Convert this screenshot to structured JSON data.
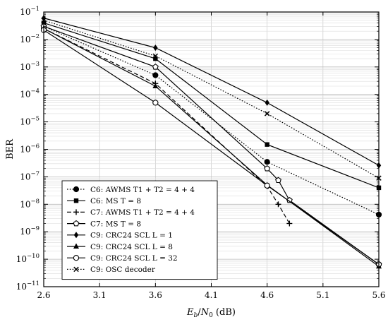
{
  "chart_data": {
    "type": "line",
    "xlabel": "E_b/N_0 (dB)",
    "ylabel": "BER",
    "xlim": [
      2.6,
      5.6
    ],
    "ylim_log10": [
      -11,
      -1
    ],
    "y_scale": "log",
    "grid": "major and minor",
    "legend_position": "bottom-left",
    "x_ticks": [
      "2.6",
      "3.1",
      "3.6",
      "4.1",
      "4.6",
      "5.1",
      "5.6"
    ],
    "y_ticks": [
      "10^-1",
      "10^-2",
      "10^-3",
      "10^-4",
      "10^-5",
      "10^-6",
      "10^-7",
      "10^-8",
      "10^-9",
      "10^-10",
      "10^-11"
    ],
    "series": [
      {
        "name": "C6: AWMS T1 + T2 = 4 + 4",
        "dash": "dotted",
        "marker": "filled-circle",
        "points": [
          [
            2.6,
            0.03
          ],
          [
            3.6,
            0.0005
          ],
          [
            4.6,
            3.5e-07
          ],
          [
            5.6,
            4.2e-09
          ]
        ]
      },
      {
        "name": "C6: MS T = 8",
        "dash": "solid",
        "marker": "filled-square",
        "points": [
          [
            2.6,
            0.04
          ],
          [
            3.6,
            0.002
          ],
          [
            4.6,
            1.5e-06
          ],
          [
            5.6,
            4e-08
          ]
        ]
      },
      {
        "name": "C7: AWMS T1 + T2 = 4 + 4",
        "dash": "dashed",
        "marker": "plus",
        "points": [
          [
            2.6,
            0.025
          ],
          [
            3.6,
            0.00025
          ],
          [
            4.6,
            4.5e-08
          ],
          [
            4.7,
            1e-08
          ],
          [
            4.8,
            2e-09
          ]
        ]
      },
      {
        "name": "C7: MS T = 8",
        "dash": "solid",
        "marker": "open-pentagon",
        "points": [
          [
            2.6,
            0.03
          ],
          [
            3.6,
            0.001
          ],
          [
            4.6,
            2e-07
          ],
          [
            4.7,
            7.5e-08
          ],
          [
            4.8,
            1.4e-08
          ],
          [
            5.6,
            6.5e-11
          ]
        ]
      },
      {
        "name": "C9: CRC24 SCL L = 1",
        "dash": "solid",
        "marker": "filled-diamond",
        "points": [
          [
            2.6,
            0.06
          ],
          [
            3.6,
            0.005
          ],
          [
            4.6,
            5e-05
          ],
          [
            5.6,
            2.6e-07
          ]
        ]
      },
      {
        "name": "C9: CRC24 SCL L = 8",
        "dash": "solid",
        "marker": "filled-triangle",
        "points": [
          [
            2.6,
            0.025
          ],
          [
            3.6,
            0.0002
          ],
          [
            4.6,
            5e-08
          ],
          [
            5.6,
            5.5e-11
          ]
        ]
      },
      {
        "name": "C9: CRC24 SCL L = 32",
        "dash": "solid",
        "marker": "open-circle",
        "points": [
          [
            2.6,
            0.022
          ],
          [
            3.6,
            5e-05
          ],
          [
            4.6,
            4.8e-08
          ],
          [
            5.6,
            6.5e-11
          ]
        ]
      },
      {
        "name": "C9: OSC decoder",
        "dash": "dotted",
        "marker": "x",
        "points": [
          [
            2.6,
            0.05
          ],
          [
            3.6,
            0.0025
          ],
          [
            4.6,
            2e-05
          ],
          [
            5.6,
            9e-08
          ]
        ]
      }
    ]
  }
}
